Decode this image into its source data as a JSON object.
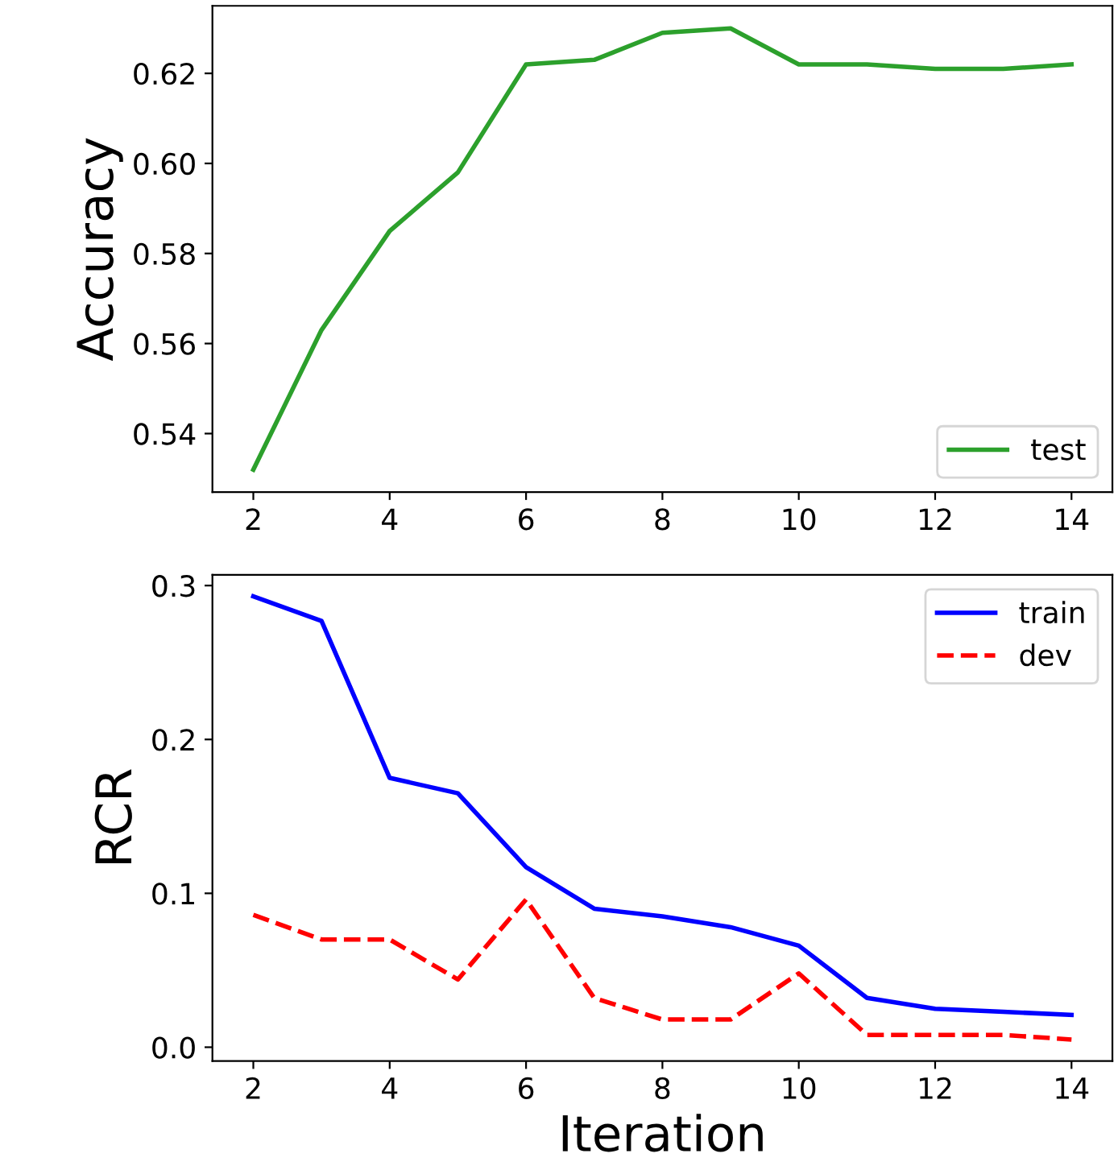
{
  "chart_data": [
    {
      "type": "line",
      "ylabel": "Accuracy",
      "x": [
        2,
        3,
        4,
        5,
        6,
        7,
        8,
        9,
        10,
        11,
        12,
        13,
        14
      ],
      "xlim": [
        1.4,
        14.6
      ],
      "xticks": [
        2,
        4,
        6,
        8,
        10,
        12,
        14
      ],
      "ylim": [
        0.527,
        0.635
      ],
      "yticks": [
        0.54,
        0.56,
        0.58,
        {
          "value": 0.6,
          "label": "0.60"
        },
        0.62
      ],
      "legend": "lower right",
      "series": [
        {
          "name": "test",
          "color": "#2ca02c",
          "line_style": "solid",
          "values": [
            0.532,
            0.563,
            0.585,
            0.598,
            0.622,
            0.623,
            0.629,
            0.63,
            0.622,
            0.622,
            0.621,
            0.621,
            0.622
          ]
        }
      ]
    },
    {
      "type": "line",
      "xlabel": "Iteration",
      "ylabel": "RCR",
      "x": [
        2,
        3,
        4,
        5,
        6,
        7,
        8,
        9,
        10,
        11,
        12,
        13,
        14
      ],
      "xlim": [
        1.4,
        14.6
      ],
      "xticks": [
        2,
        4,
        6,
        8,
        10,
        12,
        14
      ],
      "ylim": [
        -0.009,
        0.307
      ],
      "yticks": [
        {
          "value": 0.0,
          "label": "0.0"
        },
        {
          "value": 0.1,
          "label": "0.1"
        },
        {
          "value": 0.2,
          "label": "0.2"
        },
        {
          "value": 0.3,
          "label": "0.3"
        }
      ],
      "legend": "upper right",
      "series": [
        {
          "name": "train",
          "color": "#0000ff",
          "line_style": "solid",
          "values": [
            0.293,
            0.277,
            0.175,
            0.165,
            0.117,
            0.09,
            0.085,
            0.078,
            0.066,
            0.032,
            0.025,
            0.023,
            0.021
          ]
        },
        {
          "name": "dev",
          "color": "#ff0000",
          "line_style": "dashed",
          "values": [
            0.086,
            0.07,
            0.07,
            0.044,
            0.096,
            0.032,
            0.018,
            0.018,
            0.048,
            0.008,
            0.008,
            0.008,
            0.005
          ]
        }
      ]
    }
  ]
}
